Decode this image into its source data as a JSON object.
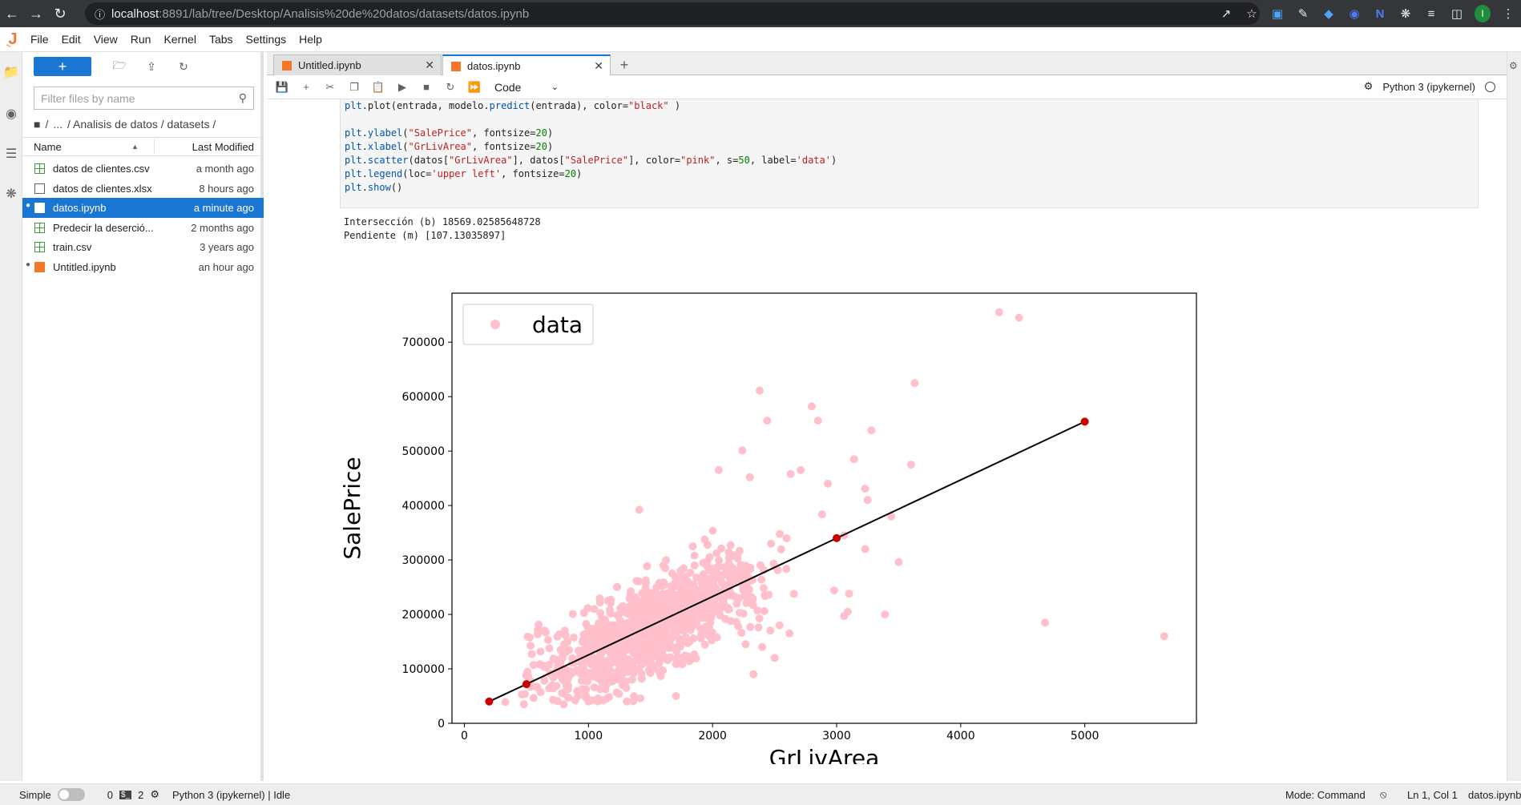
{
  "browser": {
    "url_host": "localhost",
    "url_path": ":8891/lab/tree/Desktop/Analisis%20de%20datos/datasets/datos.ipynb",
    "profile_initial": "I"
  },
  "menu": [
    "File",
    "Edit",
    "View",
    "Run",
    "Kernel",
    "Tabs",
    "Settings",
    "Help"
  ],
  "filebrowser": {
    "new_label": "+",
    "search_placeholder": "Filter files by name",
    "breadcrumb": [
      "/",
      "...",
      "/ Analisis de datos / datasets /"
    ],
    "col_name": "Name",
    "col_modified": "Last Modified",
    "files": [
      {
        "name": "datos de clientes.csv",
        "modified": "a month ago",
        "type": "csv",
        "running": false,
        "selected": false
      },
      {
        "name": "datos de clientes.xlsx",
        "modified": "8 hours ago",
        "type": "xlsx",
        "running": false,
        "selected": false
      },
      {
        "name": "datos.ipynb",
        "modified": "a minute ago",
        "type": "notebook",
        "running": true,
        "selected": true
      },
      {
        "name": "Predecir la deserció...",
        "modified": "2 months ago",
        "type": "csv",
        "running": false,
        "selected": false
      },
      {
        "name": "train.csv",
        "modified": "3 years ago",
        "type": "csv",
        "running": false,
        "selected": false
      },
      {
        "name": "Untitled.ipynb",
        "modified": "an hour ago",
        "type": "notebook",
        "running": true,
        "selected": false
      }
    ]
  },
  "tabs": [
    {
      "label": "Untitled.ipynb",
      "active": false
    },
    {
      "label": "datos.ipynb",
      "active": true
    }
  ],
  "toolbar": {
    "cell_type": "Code",
    "kernel_name": "Python 3 (ipykernel)"
  },
  "code_lines": [
    "plt.plot(entrada, modelo.predict(entrada), color=\"black\" )",
    "",
    "plt.ylabel(\"SalePrice\", fontsize=20)",
    "plt.xlabel(\"GrLivArea\", fontsize=20)",
    "plt.scatter(datos[\"GrLivArea\"], datos[\"SalePrice\"], color=\"pink\", s=50, label='data')",
    "plt.legend(loc='upper left', fontsize=20)",
    "plt.show()"
  ],
  "output_lines": [
    "Intersección (b) 18569.02585648728",
    "Pendiente (m) [107.13035897]"
  ],
  "chart_data": {
    "type": "scatter",
    "xlabel": "GrLivArea",
    "ylabel": "SalePrice",
    "xlim": [
      -100,
      5900
    ],
    "ylim": [
      0,
      790000
    ],
    "xticks": [
      0,
      1000,
      2000,
      3000,
      4000,
      5000
    ],
    "yticks": [
      0,
      100000,
      200000,
      300000,
      400000,
      500000,
      600000,
      700000
    ],
    "legend": {
      "label": "data",
      "placement": "upper left"
    },
    "series_color": "#ffc0cb",
    "line_color": "#000000",
    "marker_color": "#cc0000",
    "regression": {
      "intercept": 18569.02585648728,
      "slope": 107.13035897
    },
    "line_points": [
      [
        200,
        40000
      ],
      [
        500,
        72000
      ],
      [
        3000,
        340000
      ],
      [
        5000,
        554000
      ]
    ],
    "outliers": [
      [
        4310,
        755000
      ],
      [
        4470,
        745000
      ],
      [
        3630,
        625000
      ],
      [
        2380,
        611000
      ],
      [
        2800,
        582000
      ],
      [
        2440,
        556000
      ],
      [
        2850,
        556000
      ],
      [
        3280,
        538000
      ],
      [
        2240,
        501000
      ],
      [
        3140,
        485000
      ],
      [
        3600,
        475000
      ],
      [
        2050,
        465000
      ],
      [
        2710,
        465000
      ],
      [
        2630,
        458000
      ],
      [
        2300,
        452000
      ],
      [
        2930,
        440000
      ],
      [
        3230,
        431000
      ],
      [
        3250,
        410000
      ],
      [
        3440,
        380000
      ],
      [
        1410,
        392000
      ],
      [
        3060,
        345000
      ],
      [
        3230,
        320000
      ],
      [
        3500,
        296000
      ],
      [
        2980,
        244000
      ],
      [
        3100,
        238000
      ],
      [
        3090,
        205000
      ],
      [
        3060,
        197000
      ],
      [
        3390,
        200000
      ],
      [
        4680,
        184750
      ],
      [
        5640,
        160000
      ],
      [
        2540,
        180000
      ],
      [
        2620,
        165000
      ],
      [
        2400,
        140000
      ],
      [
        2500,
        120000
      ],
      [
        2330,
        90000
      ],
      [
        1310,
        40000
      ],
      [
        800,
        35000
      ],
      [
        480,
        35000
      ],
      [
        330,
        39000
      ],
      [
        1000,
        40000
      ]
    ],
    "cluster_center": [
      1500,
      180000
    ]
  },
  "statusbar": {
    "mode_label": "Simple",
    "count_a": "0",
    "count_b": "2",
    "kernel_status": "Python 3 (ipykernel) | Idle",
    "mode": "Mode: Command",
    "cursor": "Ln 1, Col 1",
    "filename": "datos.ipynb"
  }
}
